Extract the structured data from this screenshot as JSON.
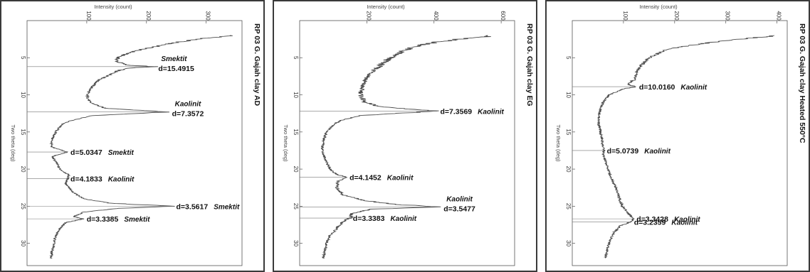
{
  "chart_data": [
    {
      "type": "line",
      "title": "RP 03 G. Gajah clay AD",
      "xlabel": "Two theta (deg)",
      "ylabel": "Intensity (count)",
      "xlim": [
        0,
        33
      ],
      "ylim": [
        0,
        360
      ],
      "xticks": [
        5,
        10,
        15,
        20,
        25,
        30
      ],
      "yticks": [
        100,
        200,
        300
      ],
      "profile": [
        [
          2,
          345
        ],
        [
          2.5,
          285
        ],
        [
          3,
          245
        ],
        [
          3.5,
          215
        ],
        [
          4,
          185
        ],
        [
          4.5,
          165
        ],
        [
          5,
          152
        ],
        [
          5.5,
          150
        ],
        [
          6,
          168
        ],
        [
          6.2,
          215
        ],
        [
          6.4,
          168
        ],
        [
          6.8,
          150
        ],
        [
          7.5,
          135
        ],
        [
          8,
          120
        ],
        [
          9,
          108
        ],
        [
          10,
          100
        ],
        [
          11,
          105
        ],
        [
          11.8,
          130
        ],
        [
          12.3,
          238
        ],
        [
          12.8,
          110
        ],
        [
          13.5,
          72
        ],
        [
          14,
          58
        ],
        [
          15,
          48
        ],
        [
          16,
          42
        ],
        [
          17,
          40
        ],
        [
          17.7,
          68
        ],
        [
          18.3,
          42
        ],
        [
          19,
          48
        ],
        [
          20,
          55
        ],
        [
          20.8,
          70
        ],
        [
          21.3,
          68
        ],
        [
          22,
          65
        ],
        [
          23,
          75
        ],
        [
          24,
          95
        ],
        [
          24.6,
          140
        ],
        [
          25,
          245
        ],
        [
          25.3,
          150
        ],
        [
          25.8,
          95
        ],
        [
          26.4,
          78
        ],
        [
          26.7,
          95
        ],
        [
          27.2,
          65
        ],
        [
          28,
          55
        ],
        [
          29,
          48
        ],
        [
          30,
          45
        ],
        [
          31,
          42
        ],
        [
          32,
          40
        ]
      ],
      "annotations": [
        {
          "d": "d=15.4915",
          "mineral": "Smektit",
          "layout": "above",
          "x": 6.2,
          "y": 215
        },
        {
          "d": "d=7.3572",
          "mineral": "Kaolinit",
          "layout": "above",
          "x": 12.3,
          "y": 238
        },
        {
          "d": "d=5.0347",
          "mineral": "Smektit",
          "layout": "inline",
          "x": 17.7,
          "y": 68
        },
        {
          "d": "d=4.1833",
          "mineral": "Kaolinit",
          "layout": "inline",
          "x": 21.3,
          "y": 68
        },
        {
          "d": "d=3.5617",
          "mineral": "Smektit",
          "layout": "inline",
          "x": 25.0,
          "y": 245
        },
        {
          "d": "d=3.3385",
          "mineral": "Smektit",
          "layout": "inline",
          "x": 26.7,
          "y": 95
        }
      ]
    },
    {
      "type": "line",
      "title": "RP 03 G. Gajah clay EG",
      "xlabel": "Two theta (deg)",
      "ylabel": "Intensity (count)",
      "xlim": [
        0,
        33
      ],
      "ylim": [
        0,
        640
      ],
      "xticks": [
        5,
        10,
        15,
        20,
        25,
        30
      ],
      "yticks": [
        200,
        400,
        600
      ],
      "profile": [
        [
          2,
          585
        ],
        [
          2.5,
          470
        ],
        [
          3,
          395
        ],
        [
          3.5,
          345
        ],
        [
          4,
          310
        ],
        [
          5,
          270
        ],
        [
          6,
          240
        ],
        [
          7,
          215
        ],
        [
          8,
          195
        ],
        [
          9,
          185
        ],
        [
          10,
          182
        ],
        [
          11,
          192
        ],
        [
          11.6,
          240
        ],
        [
          12.2,
          410
        ],
        [
          12.8,
          175
        ],
        [
          13.5,
          120
        ],
        [
          14,
          100
        ],
        [
          15,
          80
        ],
        [
          16,
          72
        ],
        [
          17,
          68
        ],
        [
          18,
          70
        ],
        [
          19,
          80
        ],
        [
          20,
          90
        ],
        [
          20.7,
          110
        ],
        [
          21.1,
          140
        ],
        [
          21.6,
          115
        ],
        [
          22.5,
          110
        ],
        [
          23.5,
          130
        ],
        [
          24.3,
          200
        ],
        [
          24.8,
          300
        ],
        [
          25.1,
          420
        ],
        [
          25.4,
          210
        ],
        [
          26,
          155
        ],
        [
          26.6,
          150
        ],
        [
          27,
          130
        ],
        [
          28,
          110
        ],
        [
          29,
          90
        ],
        [
          30,
          80
        ],
        [
          31,
          75
        ],
        [
          32,
          70
        ]
      ],
      "annotations": [
        {
          "d": "d=7.3569",
          "mineral": "Kaolinit",
          "layout": "inline",
          "x": 12.2,
          "y": 410
        },
        {
          "d": "d=4.1452",
          "mineral": "Kaolinit",
          "layout": "inline",
          "x": 21.1,
          "y": 140
        },
        {
          "d": "d=3.5477",
          "mineral": "Kaolinit",
          "layout": "above",
          "x": 25.1,
          "y": 420
        },
        {
          "d": "d=3.3383",
          "mineral": "Kaolinit",
          "layout": "inline",
          "x": 26.6,
          "y": 150
        }
      ]
    },
    {
      "type": "line",
      "title": "RP 03 G. Gajah clay Heated 550°C",
      "xlabel": "Two theta (deg)",
      "ylabel": "Intensity (count)",
      "xlim": [
        0,
        33
      ],
      "ylim": [
        0,
        420
      ],
      "xticks": [
        5,
        10,
        15,
        20,
        25,
        30
      ],
      "yticks": [
        100,
        200,
        300,
        400
      ],
      "profile": [
        [
          2,
          400
        ],
        [
          2.5,
          330
        ],
        [
          3,
          265
        ],
        [
          3.5,
          215
        ],
        [
          4,
          180
        ],
        [
          5,
          150
        ],
        [
          6,
          135
        ],
        [
          7,
          125
        ],
        [
          8,
          120
        ],
        [
          8.6,
          108
        ],
        [
          8.9,
          125
        ],
        [
          9.2,
          100
        ],
        [
          10,
          72
        ],
        [
          11,
          60
        ],
        [
          12,
          55
        ],
        [
          13,
          52
        ],
        [
          14,
          52
        ],
        [
          15,
          55
        ],
        [
          16,
          58
        ],
        [
          17,
          60
        ],
        [
          17.5,
          62
        ],
        [
          18,
          60
        ],
        [
          19,
          65
        ],
        [
          20,
          70
        ],
        [
          21,
          75
        ],
        [
          22,
          82
        ],
        [
          23,
          88
        ],
        [
          24,
          92
        ],
        [
          25,
          98
        ],
        [
          26,
          110
        ],
        [
          26.7,
          120
        ],
        [
          27.1,
          115
        ],
        [
          27.6,
          95
        ],
        [
          28.5,
          82
        ],
        [
          29,
          78
        ],
        [
          30,
          72
        ],
        [
          31,
          68
        ],
        [
          32,
          65
        ]
      ],
      "annotations": [
        {
          "d": "d=10.0160",
          "mineral": "Kaolinit",
          "layout": "inline",
          "x": 8.9,
          "y": 125
        },
        {
          "d": "d=5.0739",
          "mineral": "Kaolinit",
          "layout": "inline",
          "x": 17.5,
          "y": 62
        },
        {
          "d": "d=3.3428",
          "mineral": "Kaolinit",
          "layout": "inline",
          "x": 26.7,
          "y": 120
        },
        {
          "d": "d=3.2359",
          "mineral": "Kaolinit",
          "layout": "inline",
          "x": 27.1,
          "y": 115
        }
      ]
    }
  ]
}
